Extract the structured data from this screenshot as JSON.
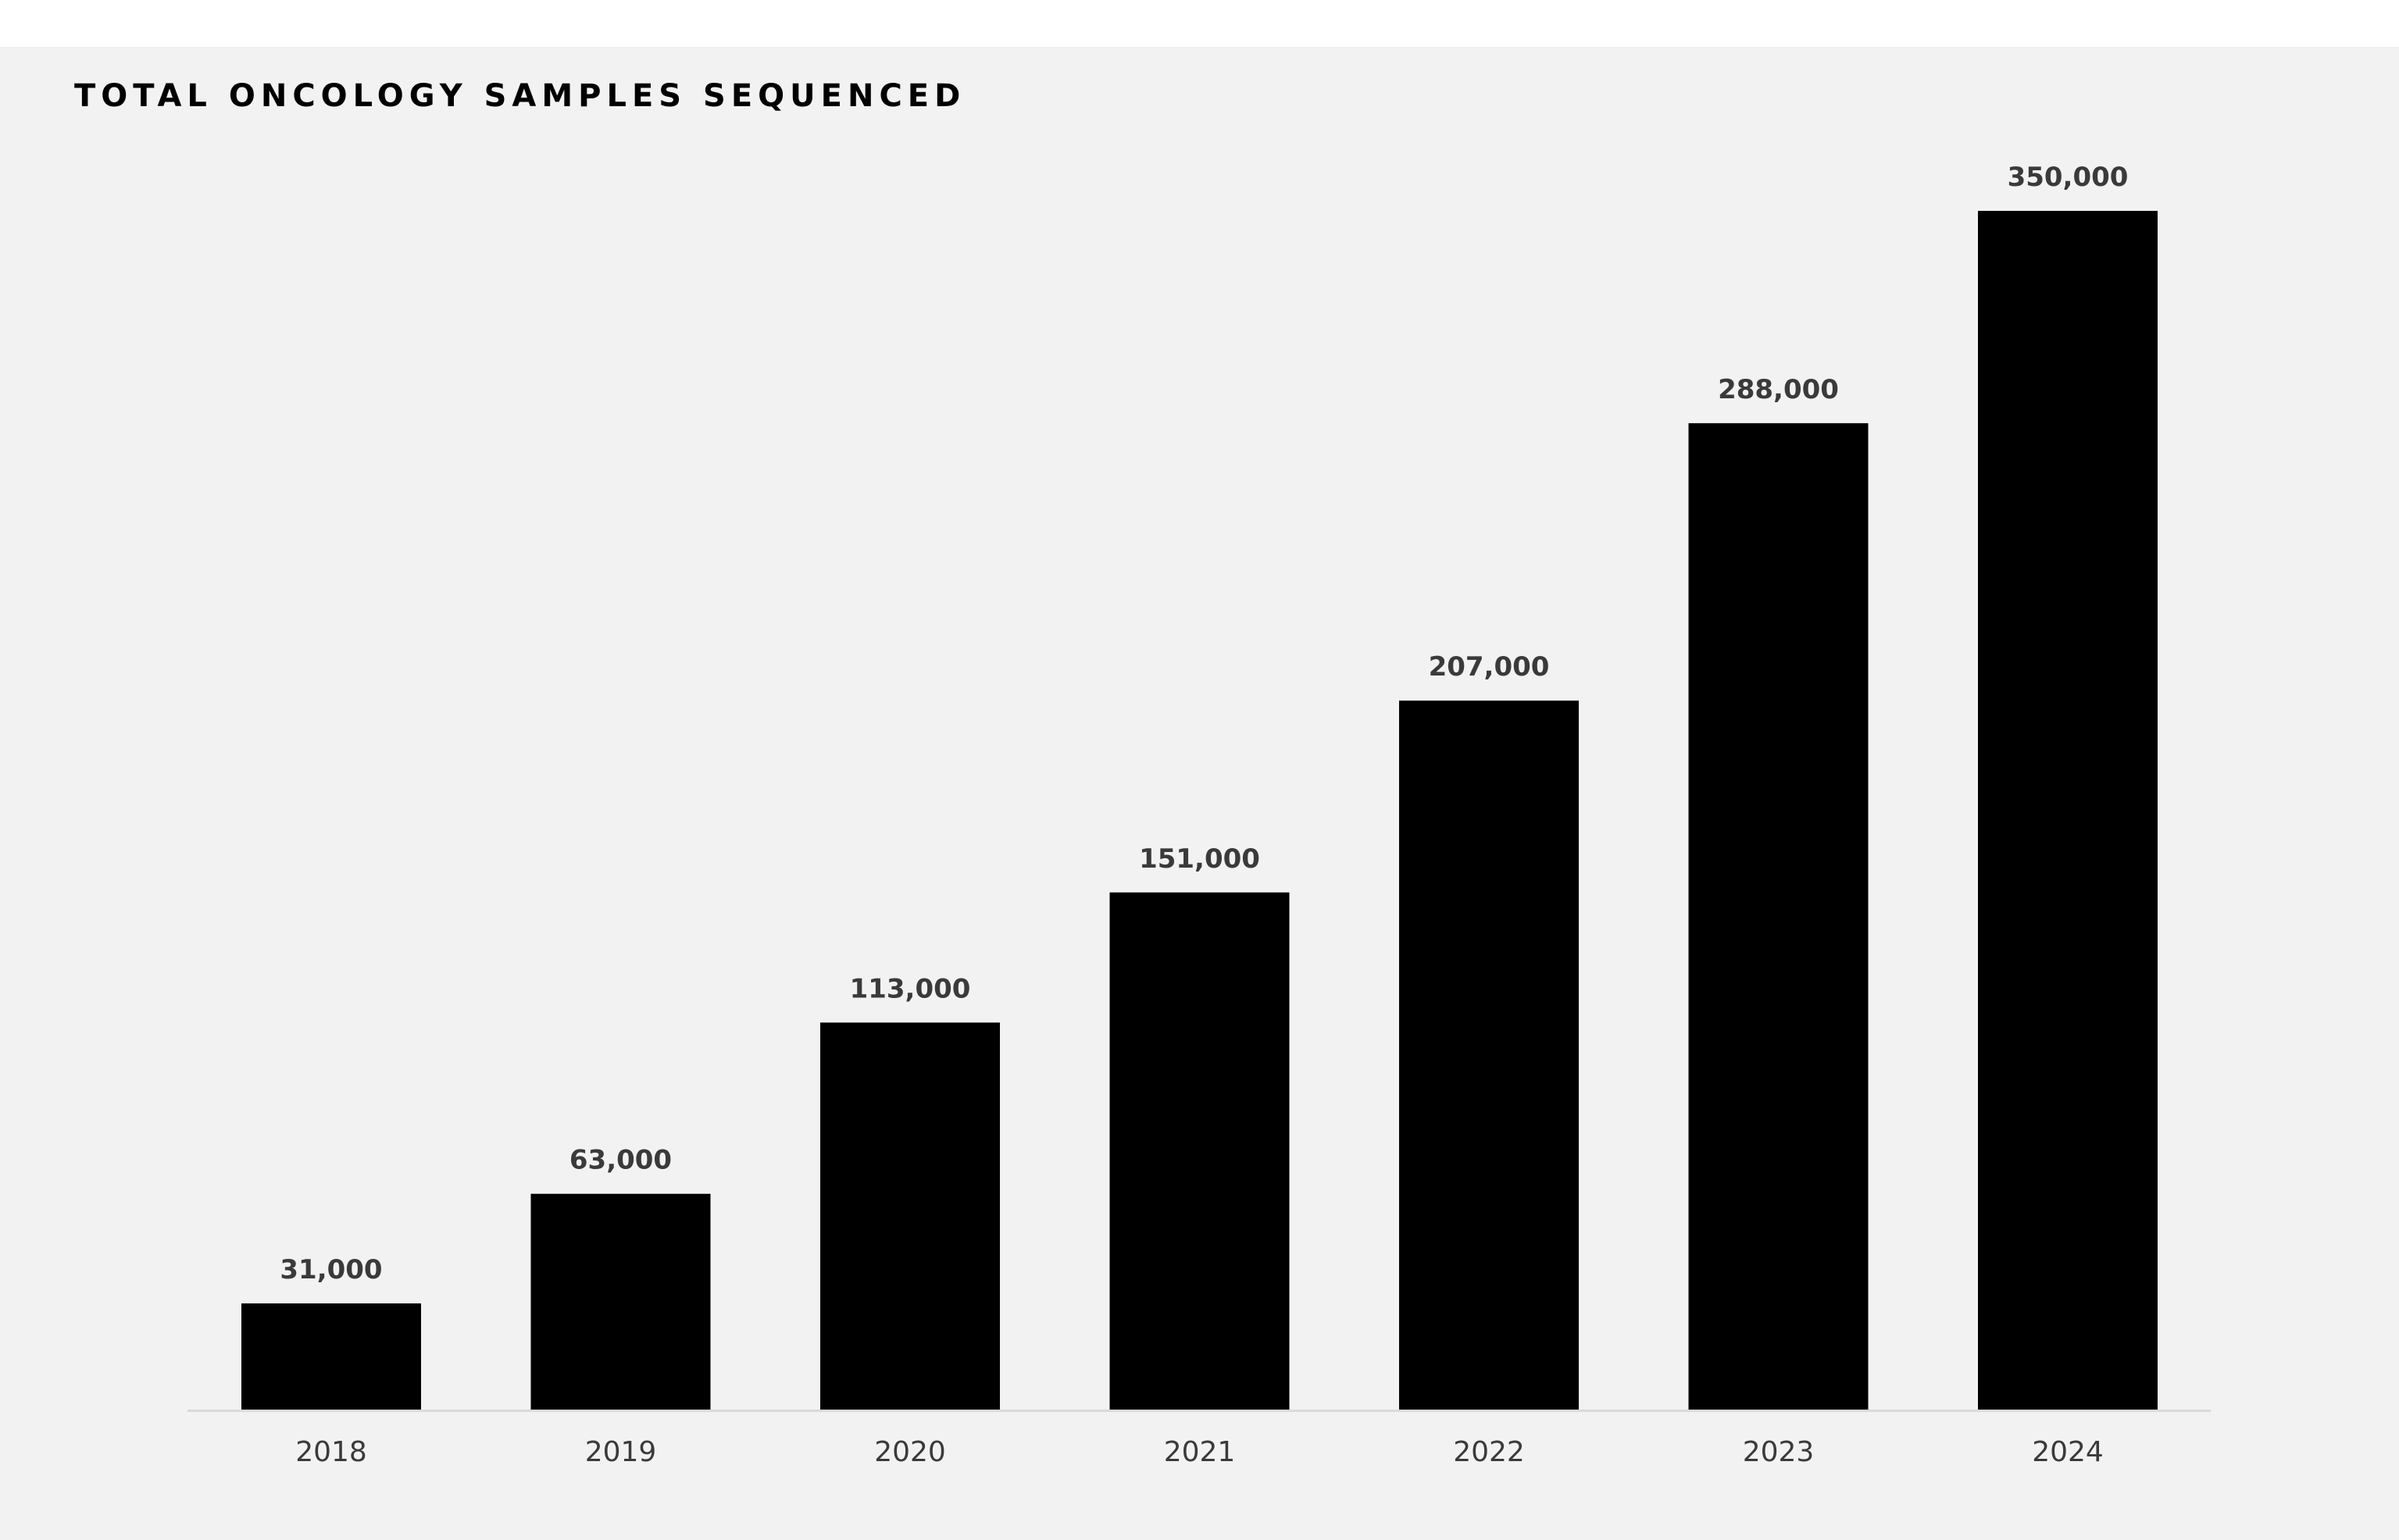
{
  "chart_data": {
    "type": "bar",
    "title": "TOTAL ONCOLOGY SAMPLES SEQUENCED",
    "categories": [
      "2018",
      "2019",
      "2020",
      "2021",
      "2022",
      "2023",
      "2024"
    ],
    "values": [
      31000,
      63000,
      113000,
      151000,
      207000,
      288000,
      350000
    ],
    "data_labels": [
      "31,000",
      "63,000",
      "113,000",
      "151,000",
      "207,000",
      "288,000",
      "350,000"
    ],
    "ylim": [
      0,
      350000
    ],
    "grid": false,
    "legend": "none",
    "colors": {
      "bar": "#000000",
      "background": "#f2f2f2",
      "axis": "#d9d9d9",
      "label": "#3a3a3a"
    }
  }
}
